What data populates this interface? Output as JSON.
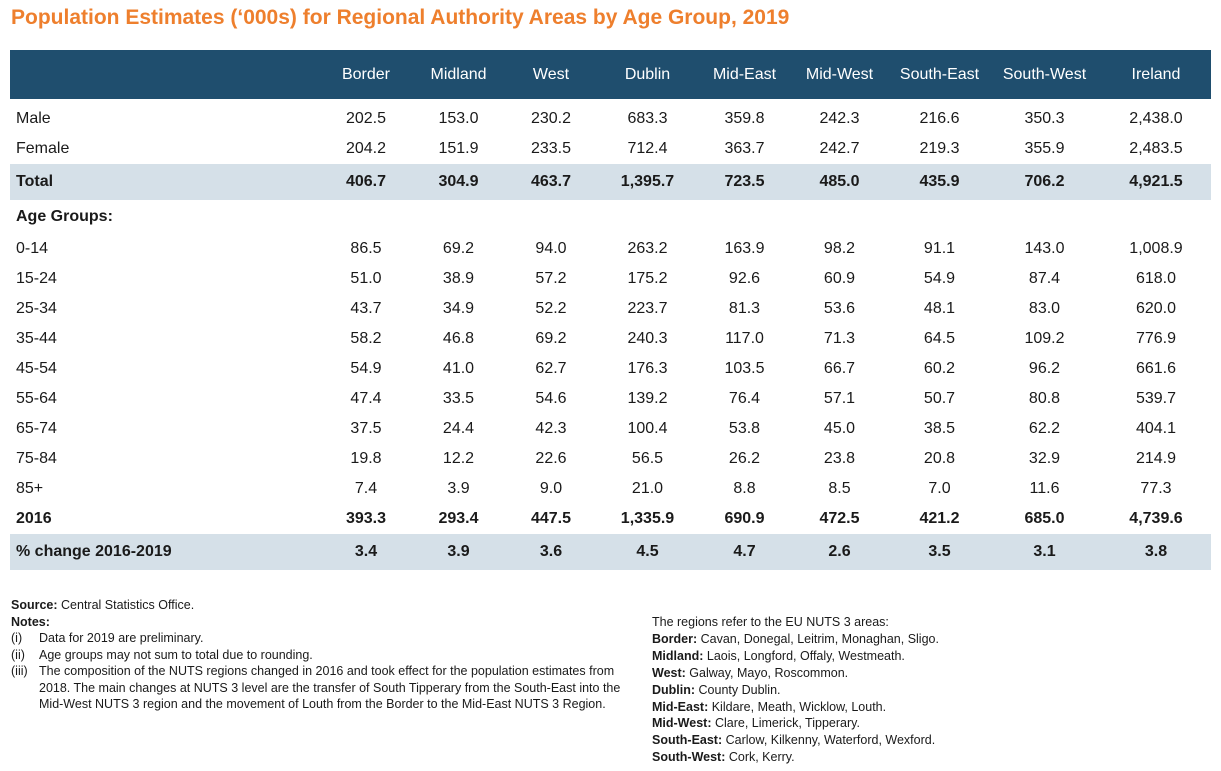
{
  "title": "Population Estimates (‘000s) for Regional Authority Areas by Age Group, 2019",
  "table": {
    "columns": [
      "",
      "Border",
      "Midland",
      "West",
      "Dublin",
      "Mid-East",
      "Mid-West",
      "South-East",
      "South-West",
      "Ireland"
    ],
    "rows": [
      {
        "label": "Male",
        "values": [
          "202.5",
          "153.0",
          "230.2",
          "683.3",
          "359.8",
          "242.3",
          "216.6",
          "350.3",
          "2,438.0"
        ]
      },
      {
        "label": "Female",
        "values": [
          "204.2",
          "151.9",
          "233.5",
          "712.4",
          "363.7",
          "242.7",
          "219.3",
          "355.9",
          "2,483.5"
        ]
      },
      {
        "label": "Total",
        "values": [
          "406.7",
          "304.9",
          "463.7",
          "1,395.7",
          "723.5",
          "485.0",
          "435.9",
          "706.2",
          "4,921.5"
        ]
      },
      {
        "label": "Age Groups:",
        "values": []
      },
      {
        "label": "0-14",
        "values": [
          "86.5",
          "69.2",
          "94.0",
          "263.2",
          "163.9",
          "98.2",
          "91.1",
          "143.0",
          "1,008.9"
        ]
      },
      {
        "label": "15-24",
        "values": [
          "51.0",
          "38.9",
          "57.2",
          "175.2",
          "92.6",
          "60.9",
          "54.9",
          "87.4",
          "618.0"
        ]
      },
      {
        "label": "25-34",
        "values": [
          "43.7",
          "34.9",
          "52.2",
          "223.7",
          "81.3",
          "53.6",
          "48.1",
          "83.0",
          "620.0"
        ]
      },
      {
        "label": "35-44",
        "values": [
          "58.2",
          "46.8",
          "69.2",
          "240.3",
          "117.0",
          "71.3",
          "64.5",
          "109.2",
          "776.9"
        ]
      },
      {
        "label": "45-54",
        "values": [
          "54.9",
          "41.0",
          "62.7",
          "176.3",
          "103.5",
          "66.7",
          "60.2",
          "96.2",
          "661.6"
        ]
      },
      {
        "label": "55-64",
        "values": [
          "47.4",
          "33.5",
          "54.6",
          "139.2",
          "76.4",
          "57.1",
          "50.7",
          "80.8",
          "539.7"
        ]
      },
      {
        "label": "65-74",
        "values": [
          "37.5",
          "24.4",
          "42.3",
          "100.4",
          "53.8",
          "45.0",
          "38.5",
          "62.2",
          "404.1"
        ]
      },
      {
        "label": "75-84",
        "values": [
          "19.8",
          "12.2",
          "22.6",
          "56.5",
          "26.2",
          "23.8",
          "20.8",
          "32.9",
          "214.9"
        ]
      },
      {
        "label": "85+",
        "values": [
          "7.4",
          "3.9",
          "9.0",
          "21.0",
          "8.8",
          "8.5",
          "7.0",
          "11.6",
          "77.3"
        ]
      },
      {
        "label": "2016",
        "values": [
          "393.3",
          "293.4",
          "447.5",
          "1,335.9",
          "690.9",
          "472.5",
          "421.2",
          "685.0",
          "4,739.6"
        ]
      },
      {
        "label": "% change 2016-2019",
        "values": [
          "3.4",
          "3.9",
          "3.6",
          "4.5",
          "4.7",
          "2.6",
          "3.5",
          "3.1",
          "3.8"
        ]
      }
    ]
  },
  "notes": {
    "source_label": "Source:",
    "source_text": " Central Statistics Office.",
    "notes_label": "Notes:",
    "items": [
      {
        "num": "(i)",
        "text": "Data for 2019 are preliminary."
      },
      {
        "num": "(ii)",
        "text": "Age groups may not sum to total due to rounding."
      },
      {
        "num": "(iii)",
        "text": "The composition of the NUTS regions changed in 2016 and took effect for the population estimates from  2018. The main changes at NUTS 3 level are the transfer of South Tipperary from the South-East into the Mid-West NUTS 3 region and the movement of Louth from the Border to the Mid-East NUTS 3 Region."
      }
    ]
  },
  "regions": {
    "intro": "The regions refer to the EU NUTS 3 areas:",
    "items": [
      {
        "name": "Border:",
        "counties": " Cavan, Donegal, Leitrim, Monaghan, Sligo."
      },
      {
        "name": "Midland:",
        "counties": " Laois, Longford, Offaly, Westmeath."
      },
      {
        "name": "West:",
        "counties": " Galway, Mayo, Roscommon."
      },
      {
        "name": "Dublin:",
        "counties": " County Dublin."
      },
      {
        "name": "Mid-East:",
        "counties": " Kildare, Meath, Wicklow, Louth."
      },
      {
        "name": "Mid-West:",
        "counties": " Clare, Limerick, Tipperary."
      },
      {
        "name": "South-East:",
        "counties": " Carlow, Kilkenny, Waterford, Wexford."
      },
      {
        "name": "South-West:",
        "counties": " Cork, Kerry."
      }
    ]
  }
}
